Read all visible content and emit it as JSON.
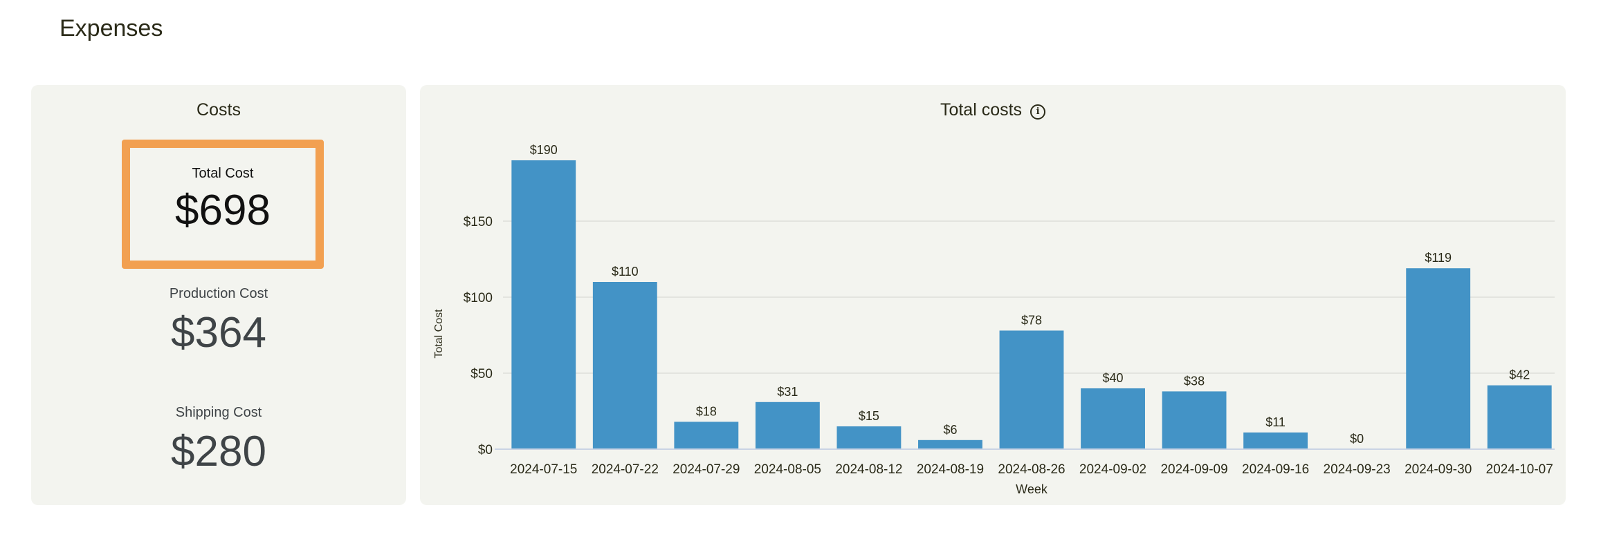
{
  "page": {
    "title": "Expenses"
  },
  "costs": {
    "title": "Costs",
    "total": {
      "label": "Total Cost",
      "value": "$698"
    },
    "production": {
      "label": "Production Cost",
      "value": "$364"
    },
    "shipping": {
      "label": "Shipping Cost",
      "value": "$280"
    },
    "highlight_color": "#f2a051"
  },
  "chart_data": {
    "type": "bar",
    "title": "Total costs",
    "xlabel": "Week",
    "ylabel": "Total Cost",
    "categories": [
      "2024-07-15",
      "2024-07-22",
      "2024-07-29",
      "2024-08-05",
      "2024-08-12",
      "2024-08-19",
      "2024-08-26",
      "2024-09-02",
      "2024-09-09",
      "2024-09-16",
      "2024-09-23",
      "2024-09-30",
      "2024-10-07"
    ],
    "values": [
      190,
      110,
      18,
      31,
      15,
      6,
      78,
      40,
      38,
      11,
      0,
      119,
      42
    ],
    "data_labels": [
      "$190",
      "$110",
      "$18",
      "$31",
      "$15",
      "$6",
      "$78",
      "$40",
      "$38",
      "$11",
      "$0",
      "$119",
      "$42"
    ],
    "yticks": [
      0,
      50,
      100,
      150
    ],
    "ytick_labels": [
      "$0",
      "$50",
      "$100",
      "$150"
    ],
    "ylim": [
      0,
      200
    ],
    "grid": true,
    "bar_color": "#4393c6",
    "info_icon": "info-icon"
  }
}
